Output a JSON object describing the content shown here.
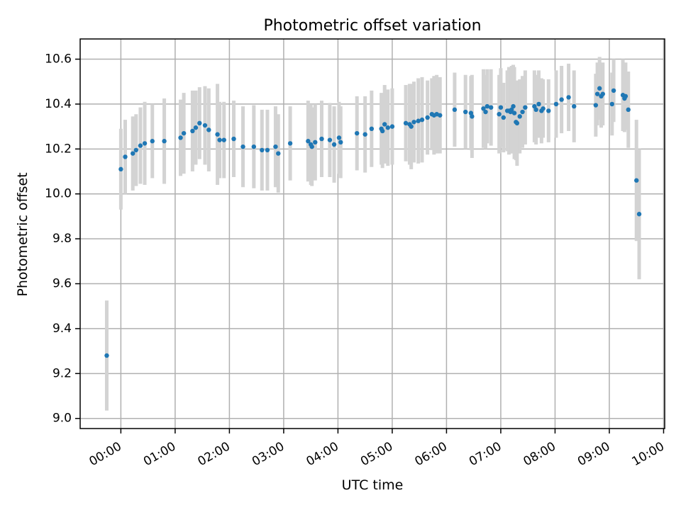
{
  "chart_data": {
    "type": "scatter",
    "title": "Photometric offset variation",
    "xlabel": "UTC time",
    "ylabel": "Photometric offset",
    "x_unit": "hours",
    "xlim": [
      -0.75,
      10.02
    ],
    "ylim": [
      8.955,
      10.69
    ],
    "x_tick_values": [
      0,
      1,
      2,
      3,
      4,
      5,
      6,
      7,
      8,
      9,
      10
    ],
    "x_tick_labels": [
      "00:00",
      "01:00",
      "02:00",
      "03:00",
      "04:00",
      "05:00",
      "06:00",
      "07:00",
      "08:00",
      "09:00",
      "10:00"
    ],
    "y_tick_values": [
      9.0,
      9.2,
      9.4,
      9.6,
      9.8,
      10.0,
      10.2,
      10.4,
      10.6
    ],
    "y_tick_labels": [
      "9.0",
      "9.2",
      "9.4",
      "9.6",
      "9.8",
      "10.0",
      "10.2",
      "10.4",
      "10.6"
    ],
    "grid": true,
    "colors": {
      "points": "#1f77b4",
      "errorbars": "#d3d3d3",
      "grid": "#b0b0b0"
    },
    "series": [
      {
        "x": [
          -0.26,
          0.0,
          0.08,
          0.22,
          0.28,
          0.36,
          0.44,
          0.58,
          0.8,
          1.1,
          1.16,
          1.32,
          1.38,
          1.45,
          1.55,
          1.62,
          1.78,
          1.82,
          1.9,
          2.08,
          2.25,
          2.45,
          2.6,
          2.7,
          2.85,
          2.9,
          3.12,
          3.45,
          3.5,
          3.52,
          3.58,
          3.7,
          3.85,
          3.93,
          4.02,
          4.05,
          4.35,
          4.5,
          4.62,
          4.8,
          4.82,
          4.86,
          4.92,
          5.0,
          5.25,
          5.32,
          5.35,
          5.4,
          5.48,
          5.55,
          5.65,
          5.73,
          5.77,
          5.82,
          5.88,
          6.15,
          6.35,
          6.45,
          6.47,
          6.68,
          6.72,
          6.75,
          6.82,
          6.97,
          7.0,
          7.05,
          7.12,
          7.15,
          7.18,
          7.2,
          7.23,
          7.25,
          7.28,
          7.3,
          7.35,
          7.4,
          7.45,
          7.62,
          7.65,
          7.7,
          7.75,
          7.78,
          7.88,
          8.02,
          8.12,
          8.25,
          8.35,
          8.75,
          8.78,
          8.82,
          8.85,
          8.88,
          9.05,
          9.08,
          9.25,
          9.28,
          9.3,
          9.35,
          9.5,
          9.55
        ],
        "y": [
          9.28,
          10.11,
          10.165,
          10.18,
          10.195,
          10.215,
          10.225,
          10.235,
          10.235,
          10.25,
          10.27,
          10.28,
          10.295,
          10.315,
          10.305,
          10.285,
          10.265,
          10.24,
          10.24,
          10.245,
          10.21,
          10.21,
          10.195,
          10.195,
          10.21,
          10.18,
          10.225,
          10.235,
          10.22,
          10.21,
          10.23,
          10.245,
          10.24,
          10.22,
          10.25,
          10.23,
          10.27,
          10.265,
          10.29,
          10.29,
          10.28,
          10.31,
          10.295,
          10.3,
          10.315,
          10.31,
          10.3,
          10.32,
          10.325,
          10.33,
          10.34,
          10.355,
          10.35,
          10.355,
          10.35,
          10.375,
          10.365,
          10.36,
          10.345,
          10.38,
          10.365,
          10.39,
          10.385,
          10.355,
          10.385,
          10.34,
          10.37,
          10.37,
          10.365,
          10.375,
          10.39,
          10.36,
          10.32,
          10.315,
          10.345,
          10.365,
          10.385,
          10.39,
          10.375,
          10.4,
          10.37,
          10.38,
          10.37,
          10.4,
          10.42,
          10.43,
          10.39,
          10.395,
          10.445,
          10.47,
          10.435,
          10.445,
          10.4,
          10.46,
          10.44,
          10.425,
          10.435,
          10.375,
          10.06,
          9.91
        ],
        "err": [
          0.245,
          0.18,
          0.165,
          0.165,
          0.16,
          0.17,
          0.185,
          0.165,
          0.19,
          0.17,
          0.18,
          0.18,
          0.165,
          0.16,
          0.175,
          0.185,
          0.225,
          0.17,
          0.17,
          0.17,
          0.18,
          0.185,
          0.18,
          0.18,
          0.18,
          0.175,
          0.165,
          0.18,
          0.18,
          0.175,
          0.17,
          0.17,
          0.165,
          0.17,
          0.16,
          0.16,
          0.165,
          0.17,
          0.17,
          0.16,
          0.165,
          0.175,
          0.17,
          0.17,
          0.17,
          0.18,
          0.19,
          0.18,
          0.19,
          0.19,
          0.165,
          0.16,
          0.175,
          0.175,
          0.17,
          0.165,
          0.165,
          0.165,
          0.185,
          0.175,
          0.165,
          0.165,
          0.17,
          0.175,
          0.175,
          0.155,
          0.18,
          0.195,
          0.185,
          0.195,
          0.185,
          0.205,
          0.17,
          0.19,
          0.165,
          0.16,
          0.165,
          0.16,
          0.155,
          0.15,
          0.145,
          0.13,
          0.14,
          0.15,
          0.15,
          0.15,
          0.16,
          0.14,
          0.14,
          0.14,
          0.14,
          0.14,
          0.14,
          0.14,
          0.16,
          0.15,
          0.15,
          0.17,
          0.27,
          0.29
        ]
      }
    ]
  }
}
